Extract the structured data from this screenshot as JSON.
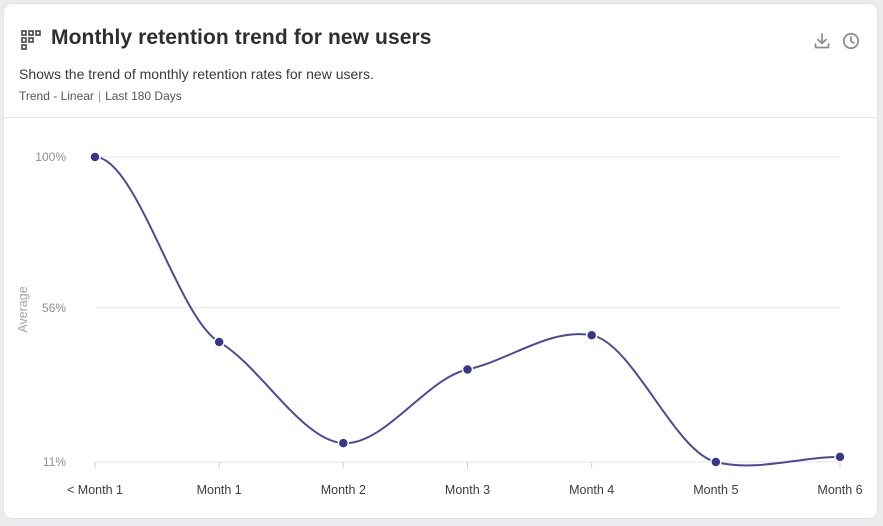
{
  "header": {
    "title": "Monthly retention trend for new users",
    "subtitle": "Shows the trend of monthly retention rates for new users.",
    "trend_type": "Trend - Linear",
    "separator": "|",
    "range": "Last 180 Days",
    "icons": [
      "grid-icon",
      "download-icon",
      "clock-icon"
    ]
  },
  "colors": {
    "line": "#4b4a98",
    "point": "#38388a",
    "grid": "#e6e6e9"
  },
  "chart_data": {
    "type": "line",
    "title": "Monthly retention trend for new users",
    "ylabel": "Average",
    "xlabel": "",
    "ylim": [
      11,
      100
    ],
    "yticks": [
      {
        "value": 100,
        "label": "100%"
      },
      {
        "value": 56,
        "label": "56%"
      },
      {
        "value": 11,
        "label": "11%"
      }
    ],
    "categories": [
      "< Month 1",
      "Month 1",
      "Month 2",
      "Month 3",
      "Month 4",
      "Month 5",
      "Month 6"
    ],
    "series": [
      {
        "values": [
          100,
          46,
          16.5,
          38,
          48,
          11,
          12.5
        ]
      }
    ],
    "grid": true,
    "legend": "none"
  }
}
